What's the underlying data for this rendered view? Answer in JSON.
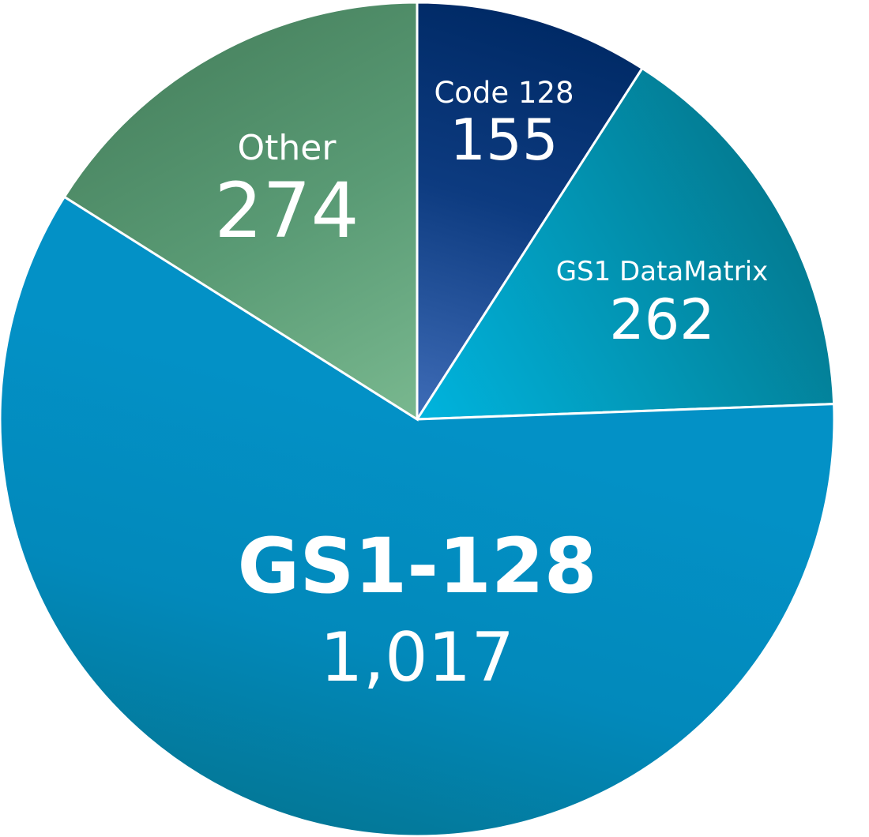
{
  "chart_data": {
    "type": "pie",
    "start_angle_deg": 0,
    "direction": "clockwise",
    "slices": [
      {
        "key": "code128",
        "label": "Code 128",
        "value": 155,
        "value_label": "155",
        "color": "#0d3b80",
        "color_dark": "#002a66",
        "color_light": "#3f6db8"
      },
      {
        "key": "gs1datamatrix",
        "label": "GS1 DataMatrix",
        "value": 262,
        "value_label": "262",
        "color": "#0296b5",
        "color_dark": "#037c93",
        "color_light": "#00b4de"
      },
      {
        "key": "gs1128",
        "label": "GS1-128",
        "value": 1017,
        "value_label": "1,017",
        "color": "#0289bb",
        "color_dark": "#037898",
        "color_light": "#0391c6"
      },
      {
        "key": "other",
        "label": "Other",
        "value": 274,
        "value_label": "274",
        "color": "#5a9b75",
        "color_dark": "#4b8763",
        "color_light": "#79b88f"
      }
    ]
  }
}
